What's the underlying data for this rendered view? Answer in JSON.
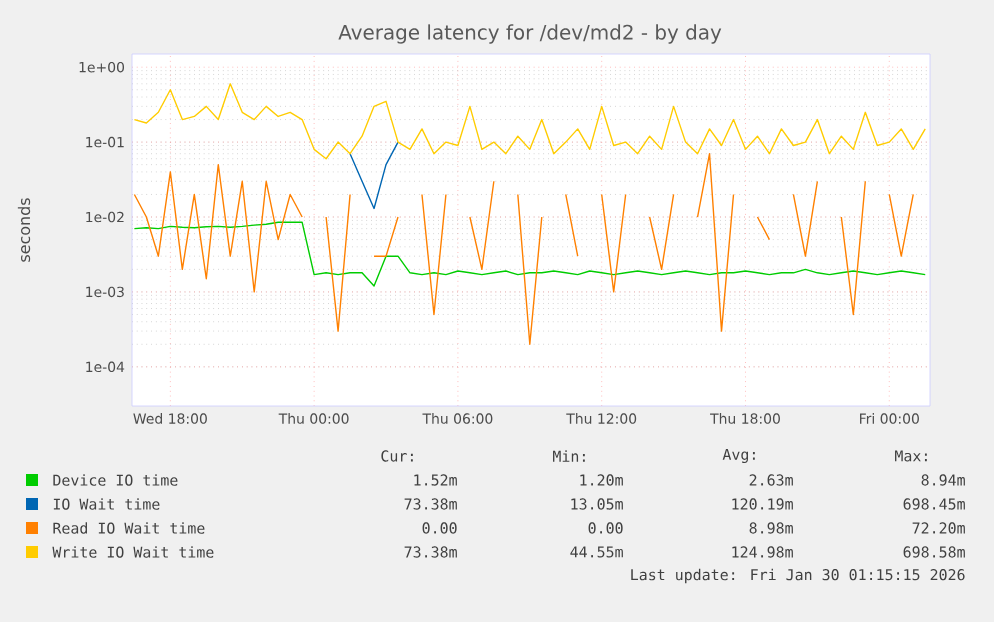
{
  "chart_data": {
    "type": "line",
    "title": "Average latency for /dev/md2 - by day",
    "ylabel": "seconds",
    "log": true,
    "grid": true,
    "legend": "bottom",
    "marker": "none",
    "line_style": "solid",
    "x": [
      "2026-01-28T16:30",
      "2026-01-28T17:00",
      "2026-01-28T17:30",
      "2026-01-28T18:00",
      "2026-01-28T18:30",
      "2026-01-28T19:00",
      "2026-01-28T19:30",
      "2026-01-28T20:00",
      "2026-01-28T20:30",
      "2026-01-28T21:00",
      "2026-01-28T21:30",
      "2026-01-28T22:00",
      "2026-01-28T22:30",
      "2026-01-28T23:00",
      "2026-01-28T23:30",
      "2026-01-29T00:00",
      "2026-01-29T00:30",
      "2026-01-29T01:00",
      "2026-01-29T01:30",
      "2026-01-29T02:00",
      "2026-01-29T02:30",
      "2026-01-29T03:00",
      "2026-01-29T03:30",
      "2026-01-29T04:00",
      "2026-01-29T04:30",
      "2026-01-29T05:00",
      "2026-01-29T05:30",
      "2026-01-29T06:00",
      "2026-01-29T06:30",
      "2026-01-29T07:00",
      "2026-01-29T07:30",
      "2026-01-29T08:00",
      "2026-01-29T08:30",
      "2026-01-29T09:00",
      "2026-01-29T09:30",
      "2026-01-29T10:00",
      "2026-01-29T10:30",
      "2026-01-29T11:00",
      "2026-01-29T11:30",
      "2026-01-29T12:00",
      "2026-01-29T12:30",
      "2026-01-29T13:00",
      "2026-01-29T13:30",
      "2026-01-29T14:00",
      "2026-01-29T14:30",
      "2026-01-29T15:00",
      "2026-01-29T15:30",
      "2026-01-29T16:00",
      "2026-01-29T16:30",
      "2026-01-29T17:00",
      "2026-01-29T17:30",
      "2026-01-29T18:00",
      "2026-01-29T18:30",
      "2026-01-29T19:00",
      "2026-01-29T19:30",
      "2026-01-29T20:00",
      "2026-01-29T20:30",
      "2026-01-29T21:00",
      "2026-01-29T21:30",
      "2026-01-29T22:00",
      "2026-01-29T22:30",
      "2026-01-29T23:00",
      "2026-01-29T23:30",
      "2026-01-30T00:00",
      "2026-01-30T00:30",
      "2026-01-30T01:00",
      "2026-01-30T01:30"
    ],
    "xlim": [
      "2026-01-28T16:24",
      "2026-01-30T01:42"
    ],
    "xticks": [
      {
        "value": "2026-01-28T18:00",
        "label": "Wed 18:00"
      },
      {
        "value": "2026-01-29T00:00",
        "label": "Thu 00:00"
      },
      {
        "value": "2026-01-29T06:00",
        "label": "Thu 06:00"
      },
      {
        "value": "2026-01-29T12:00",
        "label": "Thu 12:00"
      },
      {
        "value": "2026-01-29T18:00",
        "label": "Thu 18:00"
      },
      {
        "value": "2026-01-30T00:00",
        "label": "Fri 00:00"
      }
    ],
    "ylim": [
      3e-05,
      1.5
    ],
    "yticks": [
      {
        "value": 0.0001,
        "label": "1e-04"
      },
      {
        "value": 0.001,
        "label": "1e-03"
      },
      {
        "value": 0.01,
        "label": "1e-02"
      },
      {
        "value": 0.1,
        "label": "1e-01"
      },
      {
        "value": 1,
        "label": "1e+00"
      }
    ],
    "series": [
      {
        "name": "Device IO time",
        "color": "#00cc00",
        "values": [
          0.007,
          0.0072,
          0.007,
          0.0075,
          0.0073,
          0.0072,
          0.0074,
          0.0075,
          0.0073,
          0.0075,
          0.0078,
          0.008,
          0.0085,
          0.0085,
          0.0085,
          0.0017,
          0.0018,
          0.0017,
          0.0018,
          0.0018,
          0.0012,
          0.003,
          0.003,
          0.0018,
          0.0017,
          0.0018,
          0.0017,
          0.0019,
          0.0018,
          0.0017,
          0.0018,
          0.0019,
          0.0017,
          0.0018,
          0.0018,
          0.0019,
          0.0018,
          0.0017,
          0.0019,
          0.0018,
          0.0017,
          0.0018,
          0.0019,
          0.0018,
          0.0017,
          0.0018,
          0.0019,
          0.0018,
          0.0017,
          0.0018,
          0.0018,
          0.0019,
          0.0018,
          0.0017,
          0.0018,
          0.0018,
          0.002,
          0.0018,
          0.0017,
          0.0018,
          0.0019,
          0.0018,
          0.0017,
          0.0018,
          0.0019,
          0.0018,
          0.0017
        ]
      },
      {
        "name": "IO Wait time",
        "color": "#0066b3",
        "values": [
          null,
          null,
          null,
          null,
          null,
          null,
          null,
          null,
          null,
          null,
          null,
          null,
          null,
          null,
          null,
          null,
          null,
          null,
          0.07,
          0.03,
          0.013,
          0.05,
          0.1,
          null,
          null,
          null,
          null,
          null,
          null,
          null,
          null,
          null,
          null,
          null,
          null,
          null,
          null,
          null,
          null,
          null,
          null,
          null,
          null,
          null,
          null,
          null,
          null,
          null,
          null,
          null,
          null,
          null,
          null,
          null,
          null,
          null,
          null,
          null,
          null,
          null,
          null,
          null,
          null,
          null,
          null,
          null,
          null
        ]
      },
      {
        "name": "Read IO Wait time",
        "color": "#ff8000",
        "values": [
          0.02,
          0.01,
          0.003,
          0.04,
          0.002,
          0.02,
          0.0015,
          0.05,
          0.003,
          0.03,
          0.001,
          0.03,
          0.005,
          0.02,
          0.01,
          null,
          0.01,
          0.0003,
          0.02,
          null,
          0.003,
          0.003,
          0.01,
          null,
          0.02,
          0.0005,
          0.02,
          null,
          0.01,
          0.002,
          0.03,
          null,
          0.02,
          0.0002,
          0.01,
          null,
          0.02,
          0.003,
          null,
          0.02,
          0.001,
          0.02,
          null,
          0.01,
          0.002,
          0.02,
          null,
          0.01,
          0.07,
          0.0003,
          0.02,
          null,
          0.01,
          0.005,
          null,
          0.02,
          0.003,
          0.03,
          null,
          0.01,
          0.0005,
          0.03,
          null,
          0.02,
          0.003,
          0.02,
          null
        ]
      },
      {
        "name": "Write IO Wait time",
        "color": "#ffcc00",
        "values": [
          0.2,
          0.18,
          0.25,
          0.5,
          0.2,
          0.22,
          0.3,
          0.2,
          0.6,
          0.25,
          0.2,
          0.3,
          0.22,
          0.25,
          0.2,
          0.08,
          0.06,
          0.1,
          0.07,
          0.12,
          0.3,
          0.35,
          0.1,
          0.08,
          0.15,
          0.07,
          0.1,
          0.09,
          0.3,
          0.08,
          0.1,
          0.07,
          0.12,
          0.08,
          0.2,
          0.07,
          0.1,
          0.15,
          0.08,
          0.3,
          0.09,
          0.1,
          0.07,
          0.12,
          0.08,
          0.3,
          0.1,
          0.07,
          0.15,
          0.09,
          0.2,
          0.08,
          0.12,
          0.07,
          0.15,
          0.09,
          0.1,
          0.2,
          0.07,
          0.12,
          0.08,
          0.25,
          0.09,
          0.1,
          0.15,
          0.08,
          0.15
        ]
      }
    ],
    "annotations": [
      "Cur:",
      "Min:",
      "Avg:",
      "Max:",
      "1.52m",
      "1.20m",
      "2.63m",
      "8.94m",
      "73.38m",
      "13.05m",
      "120.19m",
      "698.45m",
      "0.00",
      "0.00",
      "8.98m",
      "72.20m",
      "73.38m",
      "44.55m",
      "124.98m",
      "698.58m",
      "Last update: Fri Jan 30 01:15:15 2026"
    ]
  }
}
